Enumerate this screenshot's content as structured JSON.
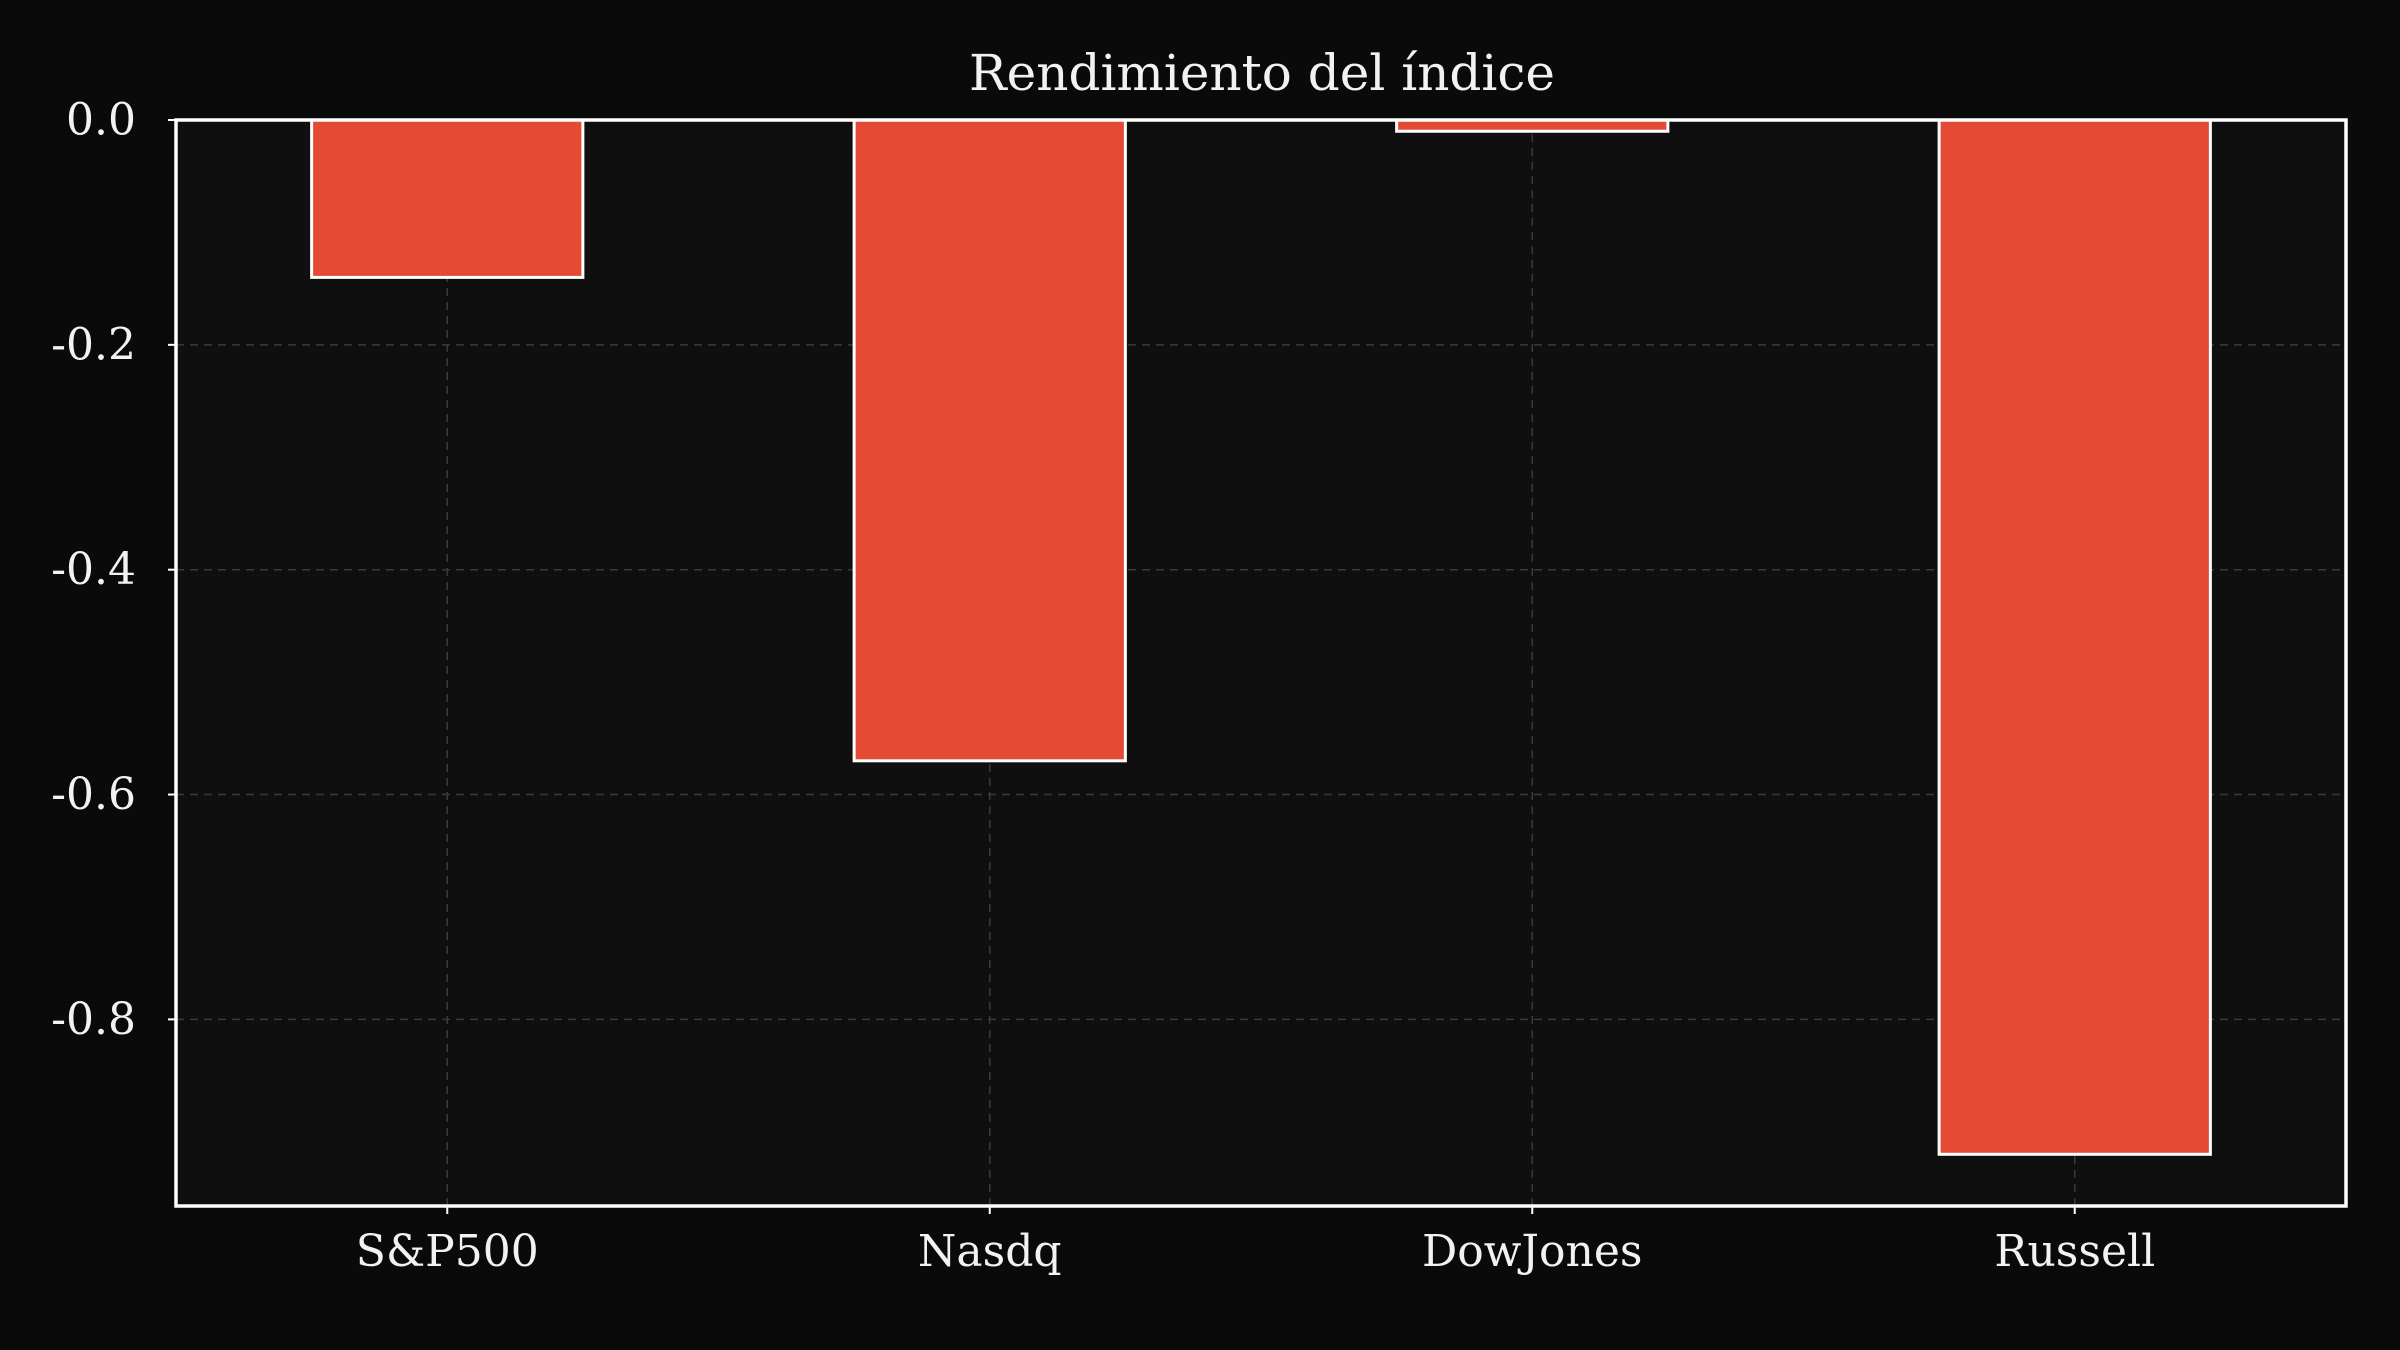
{
  "chart_data": {
    "type": "bar",
    "title": "Rendimiento del índice",
    "xlabel": "",
    "ylabel": "",
    "categories": [
      "S&P500",
      "Nasdq",
      "DowJones",
      "Russell"
    ],
    "values": [
      -0.14,
      -0.57,
      -0.01,
      -0.92
    ],
    "ylim": [
      -0.966,
      0.0
    ],
    "yticks": [
      0.0,
      -0.2,
      -0.4,
      -0.6,
      -0.8
    ],
    "ytick_labels": [
      "0.0",
      "-0.2",
      "-0.4",
      "-0.6",
      "-0.8"
    ],
    "grid": true,
    "legend": "none",
    "colors": {
      "background": "#0a0a0a",
      "plot_background": "#0f0f0f",
      "bar_fill": "#e34b35",
      "bar_edge": "#ffffff",
      "axes": "#ffffff",
      "grid": "#3a3a3a",
      "text": "#f2f2f2"
    }
  }
}
